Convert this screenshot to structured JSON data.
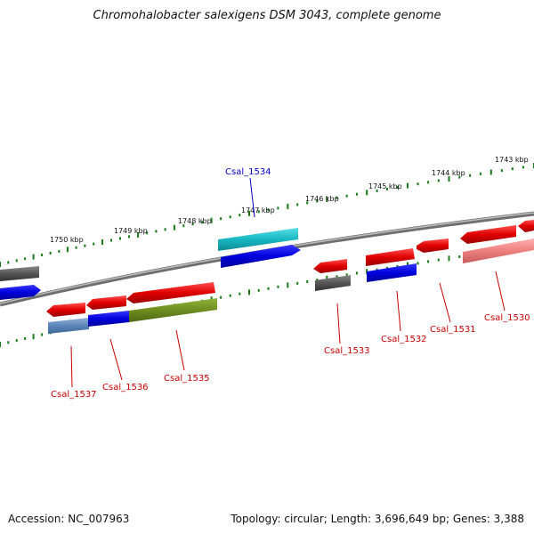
{
  "title": "Chromohalobacter salexigens DSM 3043, complete genome",
  "footer": {
    "accession": "Accession: NC_007963",
    "summary": "Topology: circular; Length: 3,696,649 bp; Genes: 3,388"
  },
  "ruler_labels": [
    "1750 kbp",
    "1749 kbp",
    "1748 kbp",
    "1747 kbp",
    "1746 kbp",
    "1745 kbp",
    "1744 kbp",
    "1743 kbp"
  ],
  "gene_labels": {
    "csal_1534": "Csal_1534",
    "csal_1533": "Csal_1533",
    "csal_1532": "Csal_1532",
    "csal_1531": "Csal_1531",
    "csal_1530": "Csal_1530",
    "csal_1535": "Csal_1535",
    "csal_1536": "Csal_1536",
    "csal_1537": "Csal_1537"
  },
  "colors": {
    "backbone": "#7a7a7a",
    "tick": "#1a7a1a",
    "red": "#e00000",
    "blue": "#0000dd",
    "cyan": "#19b7c2",
    "olive": "#6e8e1f",
    "gray": "#555555",
    "label_red": "#cc0000",
    "label_blue": "#0000cc"
  }
}
